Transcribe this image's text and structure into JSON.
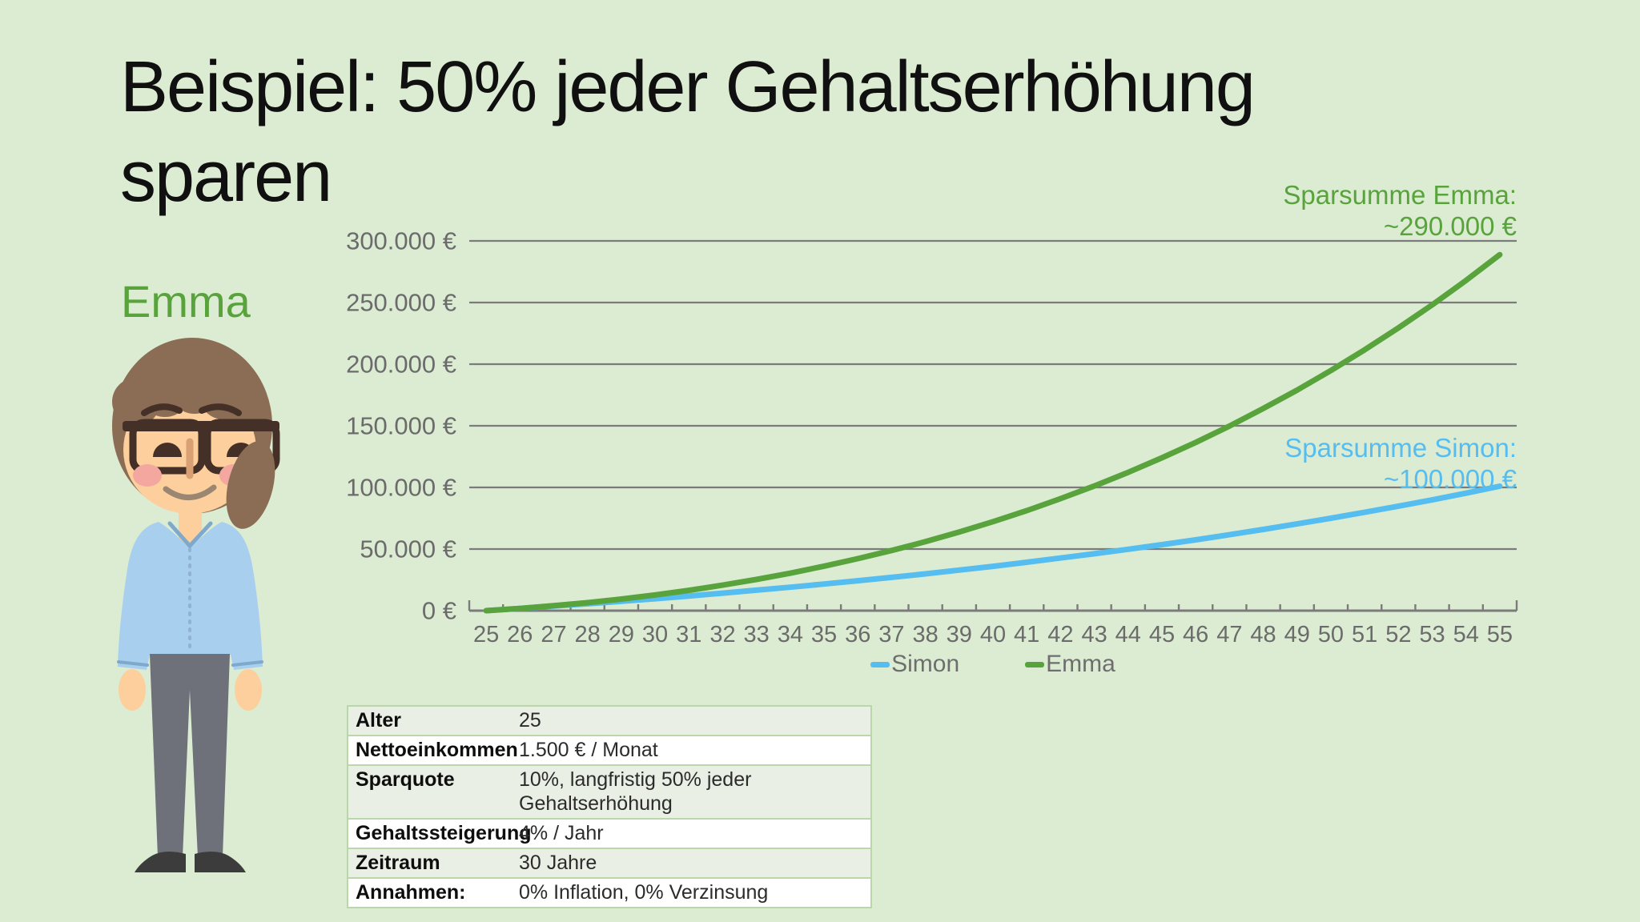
{
  "slide": {
    "title": "Beispiel: 50% jeder Gehaltserhöhung sparen",
    "person_label": "Emma"
  },
  "colors": {
    "background": "#dcecd2",
    "emma_green": "#58a33c",
    "simon_blue": "#55bdf0",
    "axis_text_gray": "#6b6b6b",
    "gridline_gray": "#7b7b7b",
    "title_black": "#101010"
  },
  "chart_data": {
    "type": "line",
    "x": [
      25,
      26,
      27,
      28,
      29,
      30,
      31,
      32,
      33,
      34,
      35,
      36,
      37,
      38,
      39,
      40,
      41,
      42,
      43,
      44,
      45,
      46,
      47,
      48,
      49,
      50,
      51,
      52,
      53,
      54,
      55
    ],
    "xlabel": "",
    "ylabel": "",
    "ylim": [
      0,
      300000
    ],
    "grid": "horizontal",
    "legend_position": "bottom",
    "y_ticks": [
      {
        "value": 0,
        "label": "0 €"
      },
      {
        "value": 50000,
        "label": "50.000 €"
      },
      {
        "value": 100000,
        "label": "100.000 €"
      },
      {
        "value": 150000,
        "label": "150.000 €"
      },
      {
        "value": 200000,
        "label": "200.000 €"
      },
      {
        "value": 250000,
        "label": "250.000 €"
      },
      {
        "value": 300000,
        "label": "300.000 €"
      }
    ],
    "series": [
      {
        "name": "Simon",
        "color": "#55bdf0",
        "values": [
          0,
          1800,
          3700,
          5600,
          7600,
          9700,
          11900,
          14200,
          16600,
          19000,
          21600,
          24300,
          27000,
          29900,
          32900,
          36000,
          39300,
          42700,
          46200,
          49800,
          53600,
          57500,
          61600,
          65900,
          70400,
          75000,
          79800,
          84800,
          89900,
          95300,
          101000
        ]
      },
      {
        "name": "Emma",
        "color": "#58a33c",
        "values": [
          0,
          1800,
          4000,
          6500,
          9400,
          12700,
          16500,
          20700,
          25300,
          30400,
          36100,
          42200,
          48800,
          56000,
          63800,
          72200,
          81200,
          90900,
          101200,
          112200,
          124000,
          136500,
          149800,
          164000,
          178900,
          194800,
          211600,
          229400,
          248100,
          267900,
          288800
        ]
      }
    ],
    "annotations": [
      {
        "id": "emma-total",
        "line1": "Sparsumme Emma:",
        "line2": "~290.000 €",
        "color": "#58a33c"
      },
      {
        "id": "simon-total",
        "line1": "Sparsumme Simon:",
        "line2": "~100.000 €",
        "color": "#55bdf0"
      }
    ]
  },
  "table": {
    "rows": [
      {
        "label": "Alter",
        "value": "25"
      },
      {
        "label": "Nettoeinkommen",
        "value": "1.500 € / Monat"
      },
      {
        "label": "Sparquote",
        "value": "10%, langfristig 50% jeder Gehaltserhöhung"
      },
      {
        "label": "Gehaltssteigerung",
        "value": "4% / Jahr"
      },
      {
        "label": "Zeitraum",
        "value": "30 Jahre"
      },
      {
        "label": "Annahmen:",
        "value": "0% Inflation, 0% Verzinsung"
      }
    ]
  }
}
